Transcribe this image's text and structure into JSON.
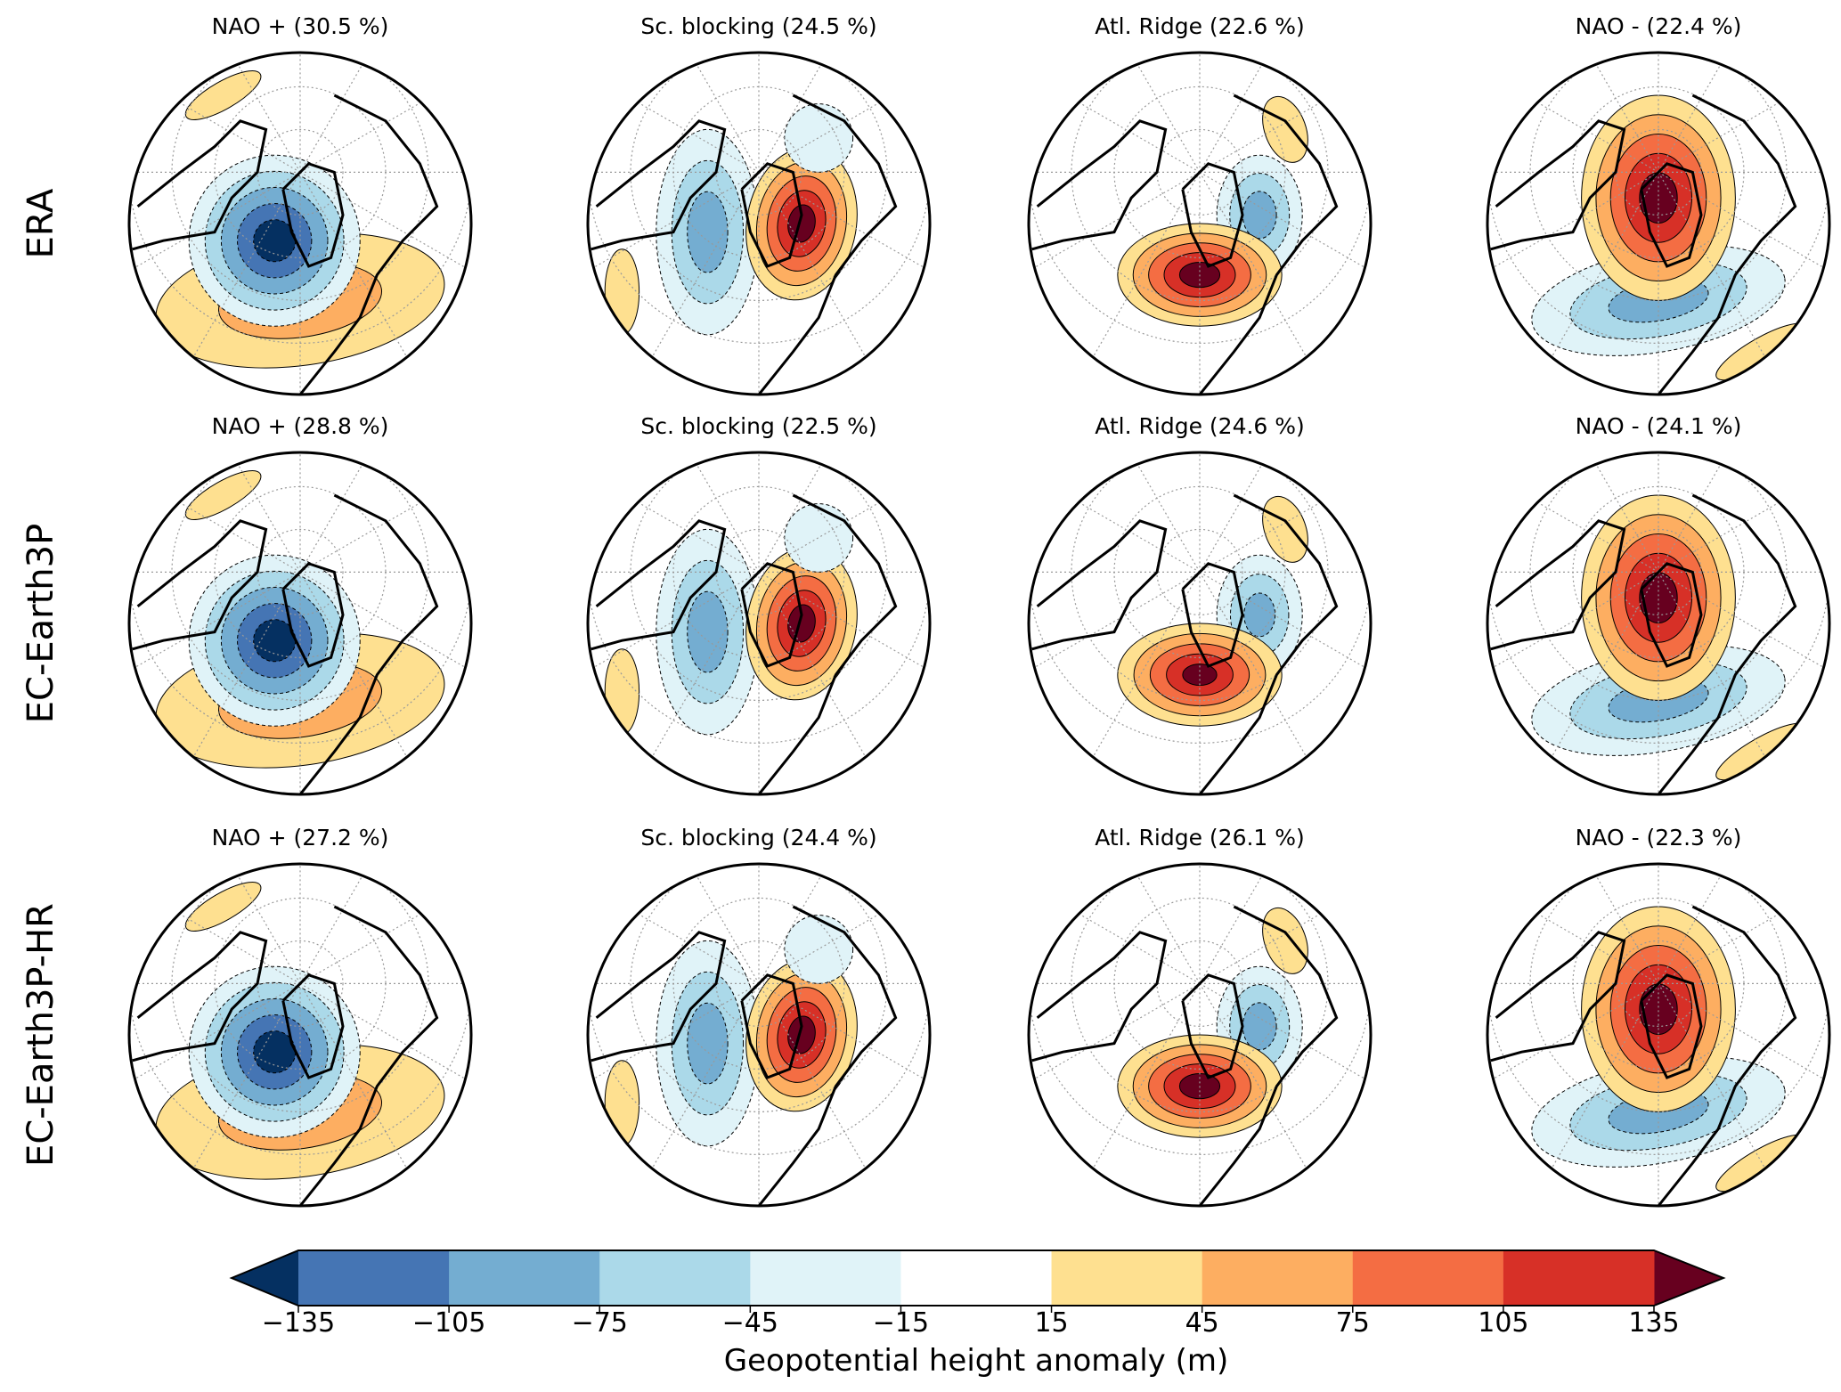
{
  "rows": [
    {
      "label": "ERA",
      "titles": [
        "NAO + (30.5 %)",
        "Sc. blocking (24.5 %)",
        "Atl. Ridge (22.6 %)",
        "NAO - (22.4 %)"
      ]
    },
    {
      "label": "EC-Earth3P",
      "titles": [
        "NAO + (28.8 %)",
        "Sc. blocking (22.5 %)",
        "Atl. Ridge (24.6 %)",
        "NAO - (24.1 %)"
      ]
    },
    {
      "label": "EC-Earth3P-HR",
      "titles": [
        "NAO + (27.2 %)",
        "Sc. blocking (24.4 %)",
        "Atl. Ridge (26.1 %)",
        "NAO - (22.3 %)"
      ]
    }
  ],
  "colorbar": {
    "label": "Geopotential height anomaly (m)",
    "ticks": [
      "−135",
      "−105",
      "−75",
      "−45",
      "−15",
      "15",
      "45",
      "75",
      "105",
      "135"
    ],
    "colors": [
      "#053061",
      "#4575b4",
      "#74add1",
      "#abd9e9",
      "#e0f3f8",
      "#ffffff",
      "#fee090",
      "#fdae61",
      "#f46d43",
      "#d73027",
      "#67001f"
    ],
    "under_color": "#053061",
    "over_color": "#800020"
  }
}
